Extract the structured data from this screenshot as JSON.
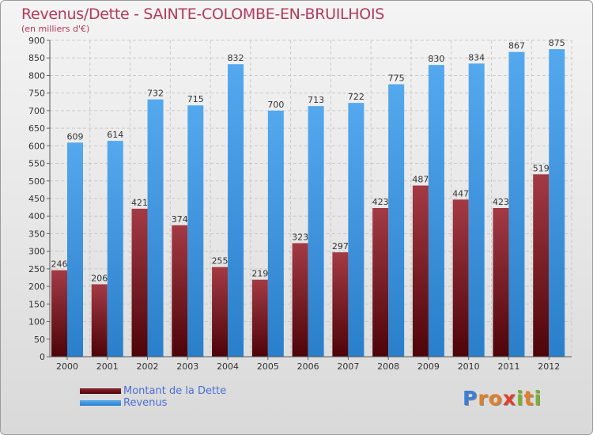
{
  "title": "Revenus/Dette - SAINTE-COLOMBE-EN-BRUILHOIS",
  "subtitle": "(en milliers d'€)",
  "logo_letters": [
    "P",
    "r",
    "o",
    "x",
    "i",
    "t",
    "i"
  ],
  "colors": {
    "dette": "#6b0f17",
    "revenus": "#3f95de",
    "title": "#b23a5a",
    "legend_text": "#4b6fd6",
    "logo": [
      "#3b7fd6",
      "#e0802a",
      "#e0802a",
      "#e0402a",
      "#7ab32a",
      "#e0802a",
      "#7ab32a"
    ]
  },
  "chart_data": {
    "type": "bar",
    "categories": [
      "2000",
      "2001",
      "2002",
      "2003",
      "2004",
      "2005",
      "2006",
      "2007",
      "2008",
      "2009",
      "2010",
      "2011",
      "2012"
    ],
    "series": [
      {
        "name": "Montant de la Dette",
        "values": [
          246,
          206,
          421,
          374,
          255,
          219,
          323,
          297,
          423,
          487,
          447,
          423,
          519
        ]
      },
      {
        "name": "Revenus",
        "values": [
          609,
          614,
          732,
          715,
          832,
          700,
          713,
          722,
          775,
          830,
          834,
          867,
          875
        ]
      }
    ],
    "ylim": [
      0,
      900
    ],
    "yticks": [
      "0",
      "50",
      "100",
      "150",
      "200",
      "250",
      "300",
      "350",
      "400",
      "450",
      "500",
      "550",
      "600",
      "650",
      "700",
      "750",
      "800",
      "850",
      "900"
    ],
    "grid": true,
    "legend_position": "bottom-left"
  }
}
